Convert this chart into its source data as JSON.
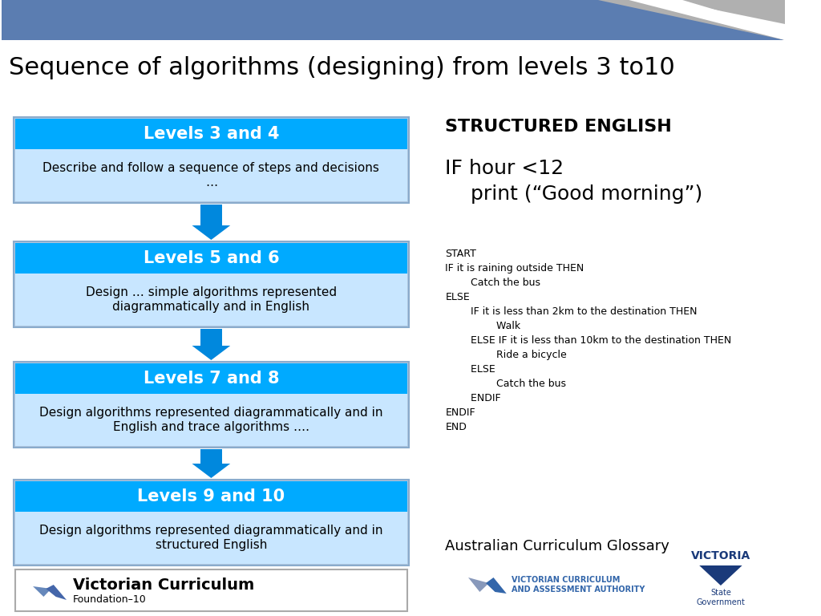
{
  "title": "Sequence of algorithms (designing) from levels 3 to10",
  "header_color": "#5B7DB1",
  "header_gray": "#A0A0A0",
  "bg_color": "#FFFFFF",
  "levels": [
    {
      "title": "Levels 3 and 4",
      "body": "Describe and follow a sequence of steps and decisions\n…",
      "title_bg": "#00AAFF",
      "body_bg": "#C8E6FF"
    },
    {
      "title": "Levels 5 and 6",
      "body": "Design … simple algorithms represented\ndiagrammatically and in English",
      "title_bg": "#00AAFF",
      "body_bg": "#C8E6FF"
    },
    {
      "title": "Levels 7 and 8",
      "body": "Design algorithms represented diagrammatically and in\nEnglish and trace algorithms ….",
      "title_bg": "#00AAFF",
      "body_bg": "#C8E6FF"
    },
    {
      "title": "Levels 9 and 10",
      "body": "Design algorithms represented diagrammatically and in\nstructured English",
      "title_bg": "#00AAFF",
      "body_bg": "#C8E6FF"
    }
  ],
  "arrow_color": "#0088DD",
  "structured_english_title": "STRUCTURED ENGLISH",
  "code_block1": "IF hour <12\n    print (“Good morning”)",
  "code_block2": "START\nIF it is raining outside THEN\n        Catch the bus\nELSE\n        IF it is less than 2km to the destination THEN\n                Walk\n        ELSE IF it is less than 10km to the destination THEN\n                Ride a bicycle\n        ELSE\n                Catch the bus\n        ENDIF\nENDIF\nEND",
  "glossary_text": "Australian Curriculum Glossary",
  "vic_curriculum_text": "Victorian Curriculum",
  "foundation_text": "Foundation–10"
}
